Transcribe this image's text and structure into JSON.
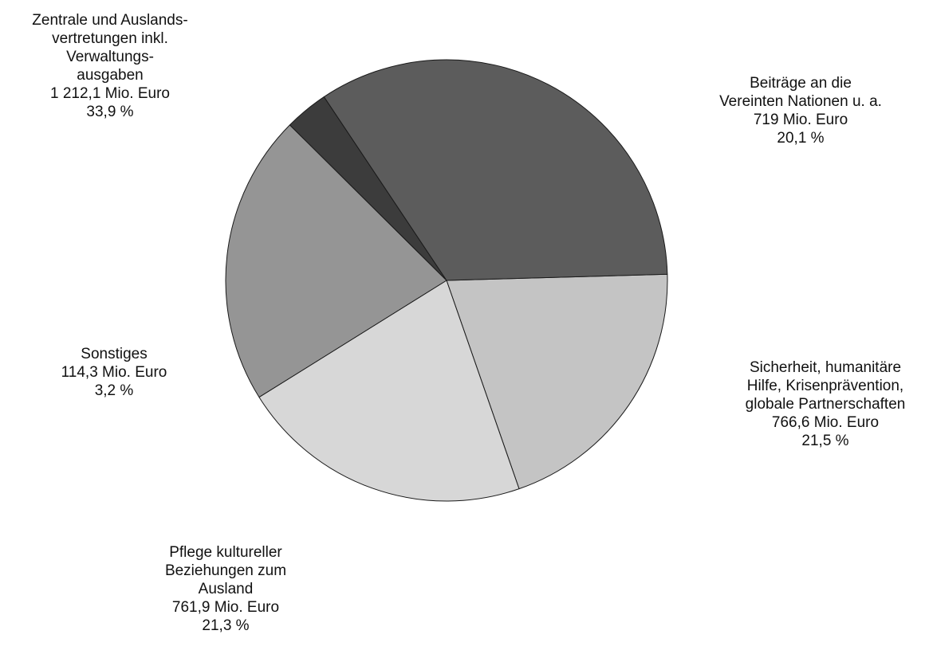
{
  "chart_data": {
    "type": "pie",
    "title": "",
    "slices": [
      {
        "value_mio_euro": 719,
        "percent": 20.1,
        "color": "#c4c4c4",
        "label_lines": [
          "Beiträge an die",
          "Vereinten Nationen u. a.",
          "719 Mio. Euro",
          "20,1 %"
        ]
      },
      {
        "value_mio_euro": 766.6,
        "percent": 21.5,
        "color": "#d7d7d7",
        "label_lines": [
          "Sicherheit, humanitäre",
          "Hilfe, Krisenprävention,",
          "globale Partnerschaften",
          "766,6 Mio. Euro",
          "21,5 %"
        ]
      },
      {
        "value_mio_euro": 761.9,
        "percent": 21.3,
        "color": "#959595",
        "label_lines": [
          "Pflege kultureller",
          "Beziehungen zum",
          "Ausland",
          "761,9 Mio. Euro",
          "21,3 %"
        ]
      },
      {
        "value_mio_euro": 114.3,
        "percent": 3.2,
        "color": "#3c3c3c",
        "label_lines": [
          "Sonstiges",
          "114,3 Mio. Euro",
          "3,2 %"
        ]
      },
      {
        "value_mio_euro": 1212.1,
        "percent": 33.9,
        "color": "#5c5c5c",
        "label_lines": [
          "Zentrale und Auslands-",
          "vertretungen inkl.",
          "Verwaltungs-",
          "ausgaben",
          "1 212,1 Mio. Euro",
          "33,9 %"
        ]
      }
    ]
  }
}
